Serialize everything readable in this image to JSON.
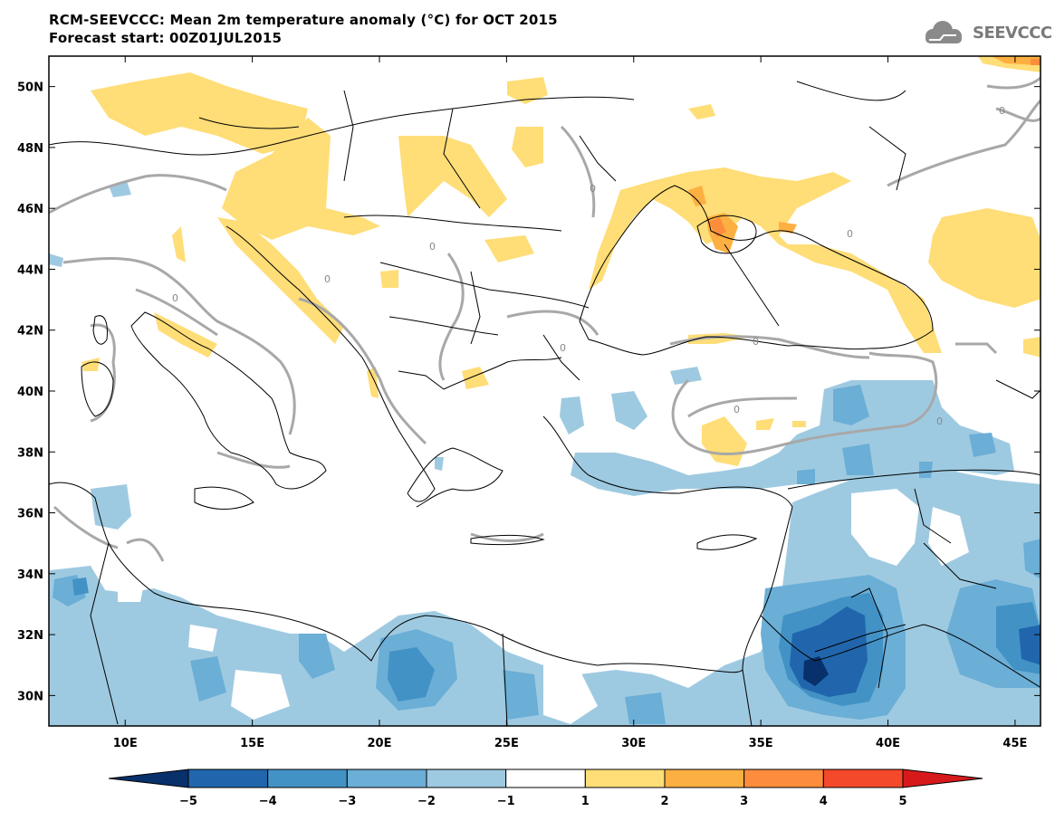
{
  "title": {
    "line1": "RCM-SEEVCCC: Mean 2m temperature anomaly (°C) for OCT 2015",
    "line2": "Forecast start: 00Z01JUL2015"
  },
  "logo": {
    "text": "SEEVCCC",
    "icon": "cloud-logo-icon"
  },
  "map": {
    "lon_range": [
      7,
      46
    ],
    "lat_range": [
      29,
      51
    ],
    "lat_labels": [
      "50N",
      "48N",
      "46N",
      "44N",
      "42N",
      "40N",
      "38N",
      "36N",
      "34N",
      "32N",
      "30N"
    ],
    "lon_labels": [
      "10E",
      "15E",
      "20E",
      "25E",
      "30E",
      "35E",
      "40E",
      "45E"
    ],
    "contour_label": "0"
  },
  "colorbar": {
    "colors": [
      "#08306b",
      "#2166ac",
      "#4292c6",
      "#6baed6",
      "#9ecae1",
      "#ffffff",
      "#ffdd77",
      "#fdb042",
      "#fd8d3c",
      "#f4492a",
      "#d7191c"
    ],
    "labels": [
      "−5",
      "−4",
      "−3",
      "−2",
      "−1",
      "1",
      "2",
      "3",
      "4",
      "5"
    ]
  }
}
